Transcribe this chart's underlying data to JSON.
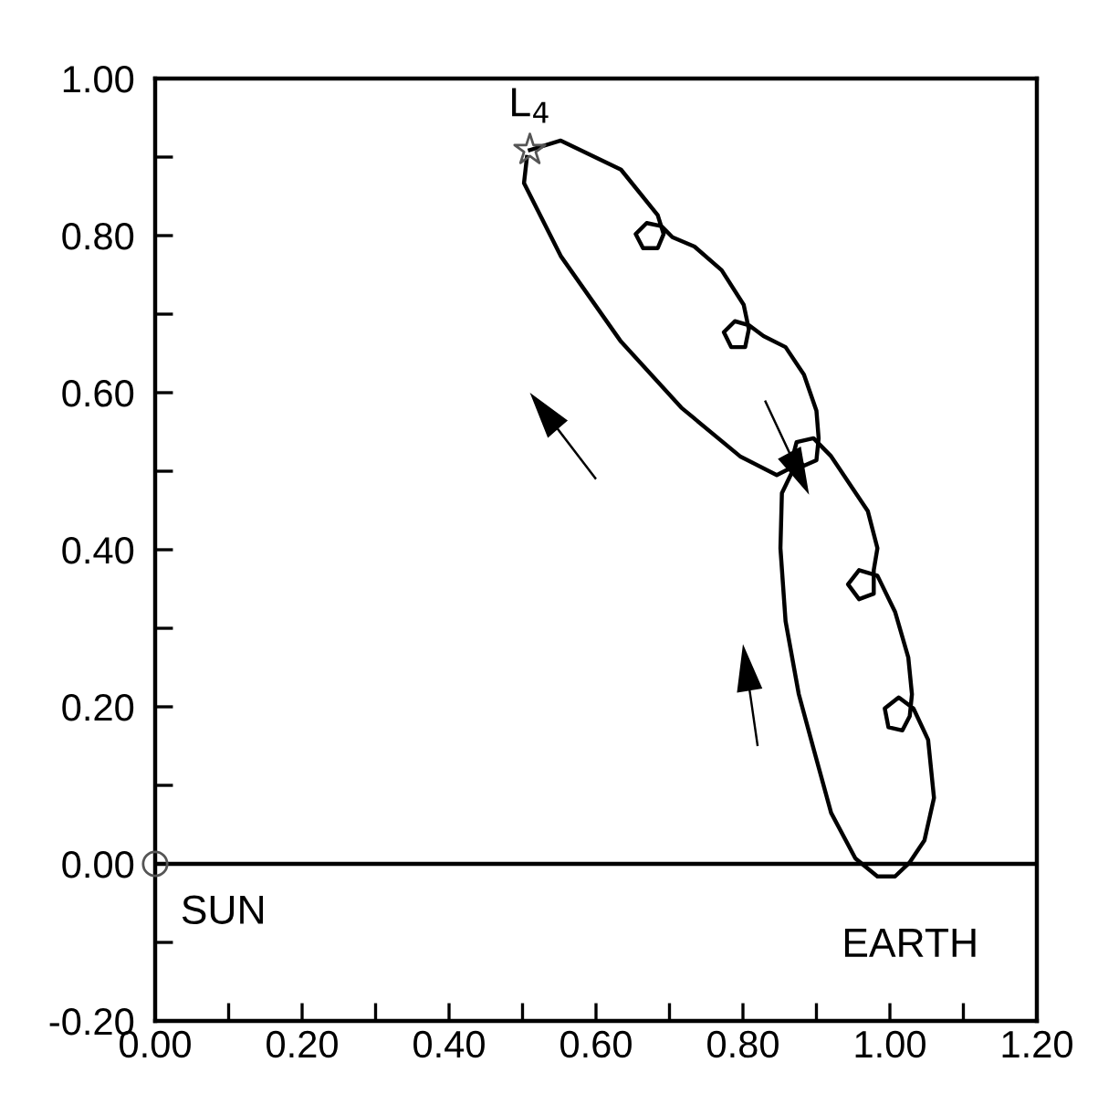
{
  "chart_data": {
    "type": "line",
    "series": [
      {
        "color": "#000000",
        "marker": "none",
        "line_style": "solid",
        "x": [
          0.51,
          0.552,
          0.634,
          0.684,
          0.692,
          0.684,
          0.664,
          0.654,
          0.669,
          0.689,
          0.704,
          0.734,
          0.771,
          0.801,
          0.808,
          0.803,
          0.784,
          0.774,
          0.789,
          0.808,
          0.828,
          0.858,
          0.883,
          0.9,
          0.903,
          0.9,
          0.883,
          0.868,
          0.873,
          0.896,
          0.92,
          0.945,
          0.97,
          0.983,
          0.978,
          0.978,
          0.958,
          0.943,
          0.958,
          0.983,
          1.007,
          1.025,
          1.03,
          1.027,
          1.017,
          0.998,
          0.993,
          1.012,
          1.032,
          1.052,
          1.06,
          1.047,
          1.027,
          1.007,
          0.983,
          0.953,
          0.92,
          0.896,
          0.876,
          0.858,
          0.851,
          0.853,
          0.871,
          0.846,
          0.796,
          0.716,
          0.634,
          0.552,
          0.502,
          0.506
        ],
        "values": [
          0.909,
          0.921,
          0.884,
          0.826,
          0.802,
          0.784,
          0.784,
          0.802,
          0.816,
          0.812,
          0.798,
          0.786,
          0.756,
          0.712,
          0.681,
          0.658,
          0.658,
          0.677,
          0.691,
          0.686,
          0.672,
          0.658,
          0.623,
          0.577,
          0.542,
          0.514,
          0.507,
          0.519,
          0.537,
          0.542,
          0.519,
          0.484,
          0.449,
          0.402,
          0.374,
          0.344,
          0.337,
          0.356,
          0.374,
          0.367,
          0.321,
          0.263,
          0.216,
          0.188,
          0.17,
          0.174,
          0.198,
          0.212,
          0.198,
          0.158,
          0.084,
          0.03,
          0.002,
          -0.016,
          -0.016,
          0.007,
          0.065,
          0.147,
          0.216,
          0.309,
          0.402,
          0.472,
          0.507,
          0.495,
          0.519,
          0.581,
          0.665,
          0.774,
          0.867,
          0.9
        ]
      },
      {
        "type": "scatter",
        "color": "#555555",
        "marker": "star",
        "x": [
          0.51
        ],
        "values": [
          0.909
        ]
      },
      {
        "type": "scatter",
        "color": "#555555",
        "marker": "circle",
        "x": [
          0.0
        ],
        "values": [
          0.0
        ]
      }
    ],
    "xlim": [
      0,
      1.2
    ],
    "ylim": [
      -0.2,
      1.0
    ],
    "xticks": [
      {
        "value": 0,
        "label": "0.00"
      },
      {
        "value": 0.1,
        "label": null
      },
      {
        "value": 0.2,
        "label": "0.20"
      },
      {
        "value": 0.3,
        "label": null
      },
      {
        "value": 0.4,
        "label": "0.40"
      },
      {
        "value": 0.5,
        "label": null
      },
      {
        "value": 0.6,
        "label": "0.60"
      },
      {
        "value": 0.7,
        "label": null
      },
      {
        "value": 0.8,
        "label": "0.80"
      },
      {
        "value": 0.9,
        "label": null
      },
      {
        "value": 1.0,
        "label": "1.00"
      },
      {
        "value": 1.1,
        "label": null
      },
      {
        "value": 1.2,
        "label": "1.20"
      }
    ],
    "yticks": [
      {
        "value": -0.2,
        "label": "-0.20"
      },
      {
        "value": -0.1,
        "label": null
      },
      {
        "value": 0,
        "label": "0.00"
      },
      {
        "value": 0.1,
        "label": null
      },
      {
        "value": 0.2,
        "label": "0.20"
      },
      {
        "value": 0.3,
        "label": null
      },
      {
        "value": 0.4,
        "label": "0.40"
      },
      {
        "value": 0.5,
        "label": null
      },
      {
        "value": 0.6,
        "label": "0.60"
      },
      {
        "value": 0.7,
        "label": null
      },
      {
        "value": 0.8,
        "label": "0.80"
      },
      {
        "value": 0.9,
        "label": null
      },
      {
        "value": 1.0,
        "label": "1.00"
      }
    ],
    "ref_lines": [
      {
        "axis": "y",
        "value": 0,
        "color": "#000000"
      }
    ],
    "annotations": [
      {
        "text": "L$_{4}$",
        "x": 0.51,
        "y": 0.909
      },
      {
        "text": "SUN",
        "x": 0.0,
        "y": 0.0
      },
      {
        "text": "EARTH",
        "x": 1.0,
        "y": 0.0
      }
    ],
    "grid": false,
    "legend": false
  }
}
